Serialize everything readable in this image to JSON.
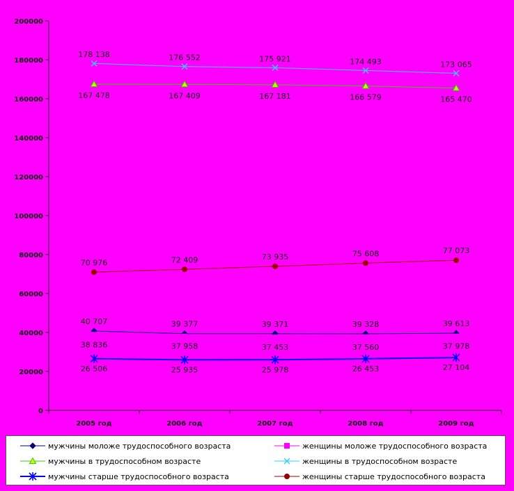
{
  "chart_data": {
    "type": "line",
    "categories": [
      "2005 год",
      "2006 год",
      "2007 год",
      "2008 год",
      "2009 год"
    ],
    "ylim": [
      0,
      200000
    ],
    "yticks": [
      "0",
      "20000",
      "40000",
      "60000",
      "80000",
      "100000",
      "120000",
      "140000",
      "160000",
      "180000",
      "200000"
    ],
    "grid": false,
    "legend_position": "bottom",
    "series": [
      {
        "name": "мужчины моложе трудоспособного возраста",
        "color": "#000080",
        "marker": "diamond",
        "values": [
          40707,
          39377,
          39371,
          39328,
          39613
        ],
        "labels": [
          "40 707",
          "39 377",
          "39 371",
          "39 328",
          "39 613"
        ]
      },
      {
        "name": "женщины моложе трудоспособного возраста",
        "color": "#ff00ff",
        "marker": "square",
        "values": [
          38836,
          37958,
          37453,
          37560,
          37978
        ],
        "labels": [
          "38 836",
          "37 958",
          "37 453",
          "37 560",
          "37 978"
        ]
      },
      {
        "name": "мужчины в трудоспособном возрасте",
        "color": "#33cc00",
        "marker": "triangle",
        "values": [
          167478,
          167409,
          167181,
          166579,
          165470
        ],
        "labels": [
          "167 478",
          "167 409",
          "167 181",
          "166 579",
          "165 470"
        ]
      },
      {
        "name": "женщины в трудоспособном возрасте",
        "color": "#33ccff",
        "marker": "x",
        "values": [
          178138,
          176552,
          175921,
          174493,
          173065
        ],
        "labels": [
          "178 138",
          "176 552",
          "175 921",
          "174 493",
          "173 065"
        ]
      },
      {
        "name": "мужчины старше трудоспособного возраста",
        "color": "#0000ff",
        "marker": "star",
        "values": [
          26506,
          25935,
          25978,
          26453,
          27104
        ],
        "labels": [
          "26 506",
          "25 935",
          "25 978",
          "26 453",
          "27 104"
        ]
      },
      {
        "name": "женщины старше трудоспособного возраста",
        "color": "#990000",
        "marker": "circle",
        "values": [
          70976,
          72409,
          73935,
          75608,
          77073
        ],
        "labels": [
          "70 976",
          "72 409",
          "73 935",
          "75 608",
          "77 073"
        ]
      }
    ]
  }
}
